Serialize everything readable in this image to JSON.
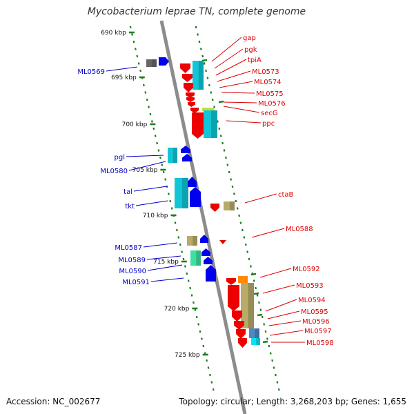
{
  "title": "Mycobacterium leprae TN, complete genome",
  "accession": "Accession: NC_002677",
  "topology": "Topology: circular; Length: 3,268,203 bp; Genes: 1,655",
  "colors": {
    "axis": "#8c8c8c",
    "tick": "#1e7d1e",
    "left_label": "#0000cc",
    "right_label": "#dd0000",
    "gene_blue": "#0000ee",
    "gene_red": "#ee0000",
    "cyan": "#11c6d6",
    "olive": "#b8ab6a"
  },
  "kbp_marks": [
    "690 kbp",
    "695 kbp",
    "700 kbp",
    "705 kbp",
    "710 kbp",
    "715 kbp",
    "720 kbp",
    "725 kbp"
  ],
  "left_genes": [
    "ML0569",
    "pgl",
    "ML0580",
    "tal",
    "tkt",
    "ML0587",
    "ML0589",
    "ML0590",
    "ML0591"
  ],
  "right_genes": [
    "gap",
    "pgk",
    "tpiA",
    "ML0573",
    "ML0574",
    "ML0575",
    "ML0576",
    "secG",
    "ppc",
    "ctaB",
    "ML0588",
    "ML0592",
    "ML0593",
    "ML0594",
    "ML0595",
    "ML0596",
    "ML0597",
    "ML0598"
  ]
}
